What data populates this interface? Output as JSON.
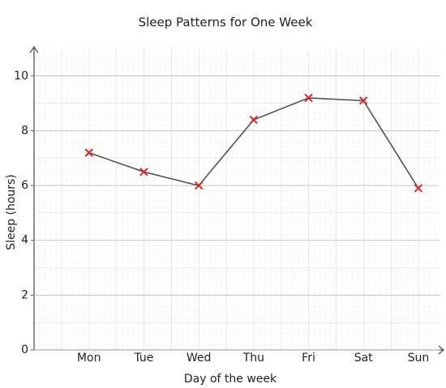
{
  "chart_data": {
    "type": "line",
    "title": "Sleep Patterns for One Week",
    "x_label": "Day of the week",
    "y_label": "Sleep (hours)",
    "categories": [
      "Mon",
      "Tue",
      "Wed",
      "Thu",
      "Fri",
      "Sat",
      "Sun"
    ],
    "values": [
      7.2,
      6.5,
      6.0,
      8.4,
      9.2,
      9.1,
      5.9
    ],
    "color": "#555555",
    "marker_color": "#d62728",
    "ylim": [
      0,
      11
    ],
    "yticks": [
      0,
      2,
      4,
      6,
      8,
      10
    ],
    "grid": true
  }
}
